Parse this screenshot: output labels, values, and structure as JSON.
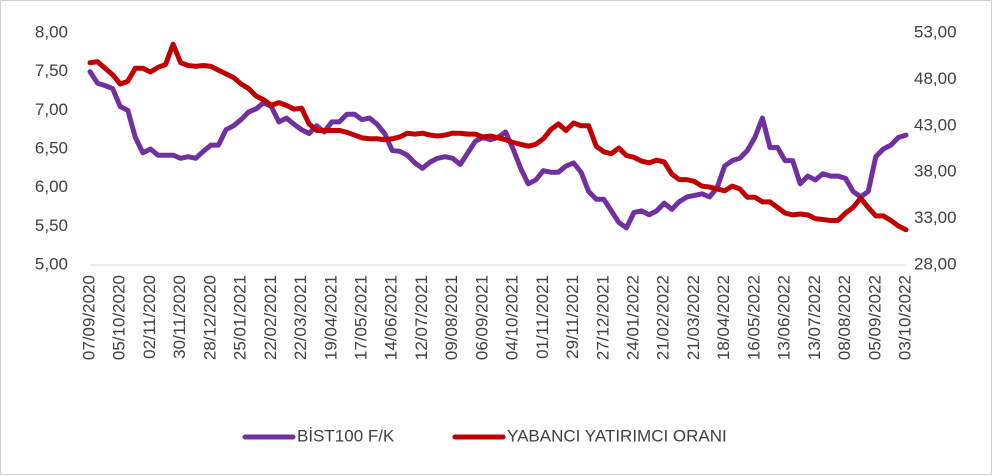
{
  "chart_data": {
    "type": "line",
    "categories": [
      "07/09/2020",
      null,
      null,
      null,
      "05/10/2020",
      null,
      null,
      null,
      "02/11/2020",
      null,
      null,
      null,
      "30/11/2020",
      null,
      null,
      null,
      "28/12/2020",
      null,
      null,
      null,
      "25/01/2021",
      null,
      null,
      null,
      "22/02/2021",
      null,
      null,
      null,
      "22/03/2021",
      null,
      null,
      null,
      "19/04/2021",
      null,
      null,
      null,
      "17/05/2021",
      null,
      null,
      null,
      "14/06/2021",
      null,
      null,
      null,
      "12/07/2021",
      null,
      null,
      null,
      "09/08/2021",
      null,
      null,
      null,
      "06/09/2021",
      null,
      null,
      null,
      "04/10/2021",
      null,
      null,
      null,
      "01/11/2021",
      null,
      null,
      null,
      "29/11/2021",
      null,
      null,
      null,
      "27/12/2021",
      null,
      null,
      null,
      "24/01/2022",
      null,
      null,
      null,
      "21/02/2022",
      null,
      null,
      null,
      "21/03/2022",
      null,
      null,
      null,
      "18/04/2022",
      null,
      null,
      null,
      "16/05/2022",
      null,
      null,
      null,
      "13/06/2022",
      null,
      null,
      null,
      "13/07/2022",
      null,
      null,
      null,
      "08/08/2022",
      null,
      null,
      null,
      "05/09/2022",
      null,
      null,
      null,
      "03/10/2022"
    ],
    "series": [
      {
        "name": "BİST100 F/K",
        "color": "#7030a0",
        "axis": "y",
        "values": [
          7.5,
          7.35,
          7.32,
          7.28,
          7.05,
          7.0,
          6.65,
          6.45,
          6.5,
          6.42,
          6.42,
          6.42,
          6.38,
          6.4,
          6.38,
          6.47,
          6.55,
          6.55,
          6.75,
          6.8,
          6.88,
          6.98,
          7.02,
          7.1,
          7.05,
          6.85,
          6.9,
          6.82,
          6.75,
          6.7,
          6.8,
          6.72,
          6.85,
          6.85,
          6.95,
          6.95,
          6.88,
          6.9,
          6.82,
          6.7,
          6.48,
          6.47,
          6.42,
          6.32,
          6.25,
          6.33,
          6.38,
          6.4,
          6.38,
          6.3,
          6.45,
          6.6,
          6.65,
          6.62,
          6.65,
          6.72,
          6.5,
          6.25,
          6.05,
          6.1,
          6.22,
          6.2,
          6.2,
          6.28,
          6.32,
          6.2,
          5.95,
          5.85,
          5.85,
          5.7,
          5.55,
          5.48,
          5.68,
          5.7,
          5.65,
          5.7,
          5.8,
          5.72,
          5.82,
          5.88,
          5.9,
          5.92,
          5.88,
          6.0,
          6.28,
          6.35,
          6.38,
          6.48,
          6.65,
          6.9,
          6.52,
          6.52,
          6.35,
          6.35,
          6.05,
          6.15,
          6.1,
          6.18,
          6.15,
          6.15,
          6.12,
          5.95,
          5.88,
          5.95,
          6.4,
          6.5,
          6.55,
          6.65,
          6.68
        ]
      },
      {
        "name": "YABANCI YATIRIMCI ORANI",
        "color": "#c00000",
        "axis": "y2",
        "values": [
          49.8,
          49.9,
          49.2,
          48.5,
          47.5,
          47.8,
          49.2,
          49.2,
          48.8,
          49.3,
          49.6,
          51.8,
          49.8,
          49.5,
          49.4,
          49.5,
          49.4,
          49.0,
          48.6,
          48.2,
          47.5,
          47.0,
          46.2,
          45.8,
          45.2,
          45.5,
          45.2,
          44.8,
          44.9,
          43.2,
          42.5,
          42.5,
          42.5,
          42.5,
          42.3,
          42.0,
          41.7,
          41.6,
          41.6,
          41.5,
          41.6,
          41.8,
          42.2,
          42.1,
          42.2,
          42.0,
          41.9,
          42.0,
          42.2,
          42.2,
          42.1,
          42.1,
          41.8,
          41.9,
          41.7,
          41.5,
          41.2,
          41.0,
          40.8,
          41.0,
          41.6,
          42.6,
          43.2,
          42.5,
          43.3,
          43.0,
          43.0,
          40.8,
          40.2,
          40.0,
          40.6,
          39.8,
          39.6,
          39.2,
          39.0,
          39.3,
          39.1,
          37.8,
          37.2,
          37.2,
          37.0,
          36.5,
          36.4,
          36.2,
          36.0,
          36.5,
          36.2,
          35.3,
          35.3,
          34.8,
          34.8,
          34.2,
          33.6,
          33.4,
          33.5,
          33.4,
          33.0,
          32.9,
          32.8,
          32.8,
          33.6,
          34.2,
          35.2,
          34.2,
          33.3,
          33.3,
          32.8,
          32.2,
          31.8
        ]
      }
    ],
    "ylim": [
      5,
      8
    ],
    "yticks": [
      {
        "value": 5,
        "label": "5,00"
      },
      {
        "value": 5.5,
        "label": "5,50"
      },
      {
        "value": 6,
        "label": "6,00"
      },
      {
        "value": 6.5,
        "label": "6,50"
      },
      {
        "value": 7,
        "label": "7,00"
      },
      {
        "value": 7.5,
        "label": "7,50"
      },
      {
        "value": 8,
        "label": "8,00"
      }
    ],
    "y2lim": [
      28,
      53
    ],
    "y2ticks": [
      {
        "value": 28,
        "label": "28,00"
      },
      {
        "value": 33,
        "label": "33,00"
      },
      {
        "value": 38,
        "label": "38,00"
      },
      {
        "value": 43,
        "label": "43,00"
      },
      {
        "value": 48,
        "label": "48,00"
      },
      {
        "value": 53,
        "label": "53,00"
      }
    ],
    "grid": false,
    "legend": "bottom"
  }
}
